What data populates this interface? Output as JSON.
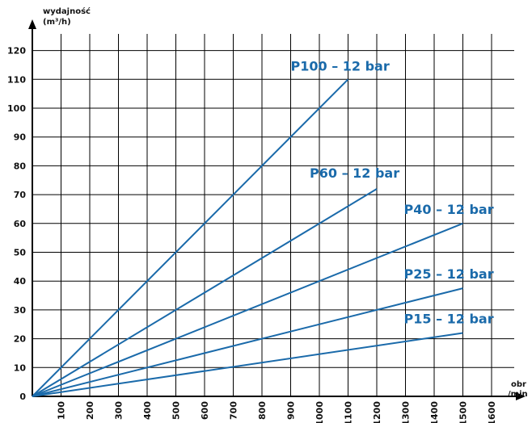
{
  "chart_data": {
    "type": "line",
    "title": "",
    "ylabel_line1": "wydajność",
    "ylabel_line2": "(m³/h)",
    "xlabel_line1": "obr",
    "xlabel_line2": "/min",
    "xlim": [
      0,
      1600
    ],
    "ylim": [
      0,
      120
    ],
    "x_ticks": [
      "100",
      "200",
      "300",
      "400",
      "500",
      "600",
      "700",
      "800",
      "900",
      "1000",
      "1100",
      "1200",
      "1300",
      "1400",
      "1500",
      "1600"
    ],
    "y_ticks": [
      "0",
      "10",
      "20",
      "30",
      "40",
      "50",
      "60",
      "70",
      "80",
      "90",
      "100",
      "110",
      "120"
    ],
    "grid": true,
    "line_color": "#1a6aaa",
    "label_color": "#1a6aaa",
    "series": [
      {
        "name": "P100 – 12 bar",
        "x": [
          0,
          1100
        ],
        "y": [
          0,
          110
        ]
      },
      {
        "name": "P60 – 12 bar",
        "x": [
          0,
          1200
        ],
        "y": [
          0,
          72
        ]
      },
      {
        "name": "P40 – 12 bar",
        "x": [
          0,
          1500
        ],
        "y": [
          0,
          60
        ]
      },
      {
        "name": "P25 – 12 bar",
        "x": [
          0,
          1500
        ],
        "y": [
          0,
          37.5
        ]
      },
      {
        "name": "P15 – 12 bar",
        "x": [
          0,
          1500
        ],
        "y": [
          0,
          22
        ]
      }
    ]
  }
}
